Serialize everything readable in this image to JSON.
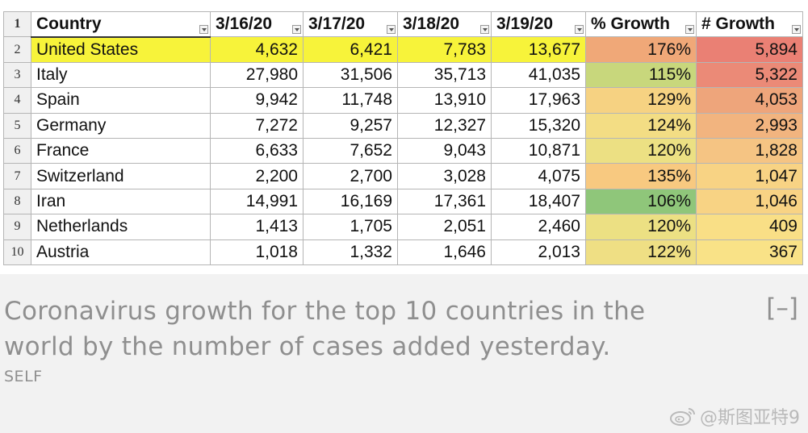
{
  "table": {
    "row_numbers": [
      "1",
      "2",
      "3",
      "4",
      "5",
      "6",
      "7",
      "8",
      "9",
      "10"
    ],
    "headers": [
      "Country",
      "3/16/20",
      "3/17/20",
      "3/18/20",
      "3/19/20",
      "% Growth",
      "# Growth"
    ],
    "rows": [
      {
        "country": "United States",
        "d1": "4,632",
        "d2": "6,421",
        "d3": "7,783",
        "d4": "13,677",
        "pct": "176%",
        "num": "5,894",
        "pct_color": "#f0a878",
        "num_color": "#ea8074",
        "row_color": "#f7f33a"
      },
      {
        "country": "Italy",
        "d1": "27,980",
        "d2": "31,506",
        "d3": "35,713",
        "d4": "41,035",
        "pct": "115%",
        "num": "5,322",
        "pct_color": "#c8d77c",
        "num_color": "#eb8a77"
      },
      {
        "country": "Spain",
        "d1": "9,942",
        "d2": "11,748",
        "d3": "13,910",
        "d4": "17,963",
        "pct": "129%",
        "num": "4,053",
        "pct_color": "#f6d282",
        "num_color": "#eea57b"
      },
      {
        "country": "Germany",
        "d1": "7,272",
        "d2": "9,257",
        "d3": "12,327",
        "d4": "15,320",
        "pct": "124%",
        "num": "2,993",
        "pct_color": "#f3dd84",
        "num_color": "#f2b47f"
      },
      {
        "country": "France",
        "d1": "6,633",
        "d2": "7,652",
        "d3": "9,043",
        "d4": "10,871",
        "pct": "120%",
        "num": "1,828",
        "pct_color": "#ece083",
        "num_color": "#f5c483"
      },
      {
        "country": "Switzerland",
        "d1": "2,200",
        "d2": "2,700",
        "d3": "3,028",
        "d4": "4,075",
        "pct": "135%",
        "num": "1,047",
        "pct_color": "#f8c980",
        "num_color": "#f8d384"
      },
      {
        "country": "Iran",
        "d1": "14,991",
        "d2": "16,169",
        "d3": "17,361",
        "d4": "18,407",
        "pct": "106%",
        "num": "1,046",
        "pct_color": "#8fc67a",
        "num_color": "#f8d384"
      },
      {
        "country": "Netherlands",
        "d1": "1,413",
        "d2": "1,705",
        "d3": "2,051",
        "d4": "2,460",
        "pct": "120%",
        "num": "409",
        "pct_color": "#ece083",
        "num_color": "#f9df86"
      },
      {
        "country": "Austria",
        "d1": "1,018",
        "d2": "1,332",
        "d3": "1,646",
        "d4": "2,013",
        "pct": "122%",
        "num": "367",
        "pct_color": "#efdf84",
        "num_color": "#f9e287"
      }
    ]
  },
  "caption": {
    "text": "Coronavirus growth for the top 10 countries in the world by the number of cases added yesterday.",
    "collapse_label": "[–]",
    "source": "SELF"
  },
  "watermark": {
    "text": "@斯图亚特9",
    "icon": "weibo-icon"
  }
}
